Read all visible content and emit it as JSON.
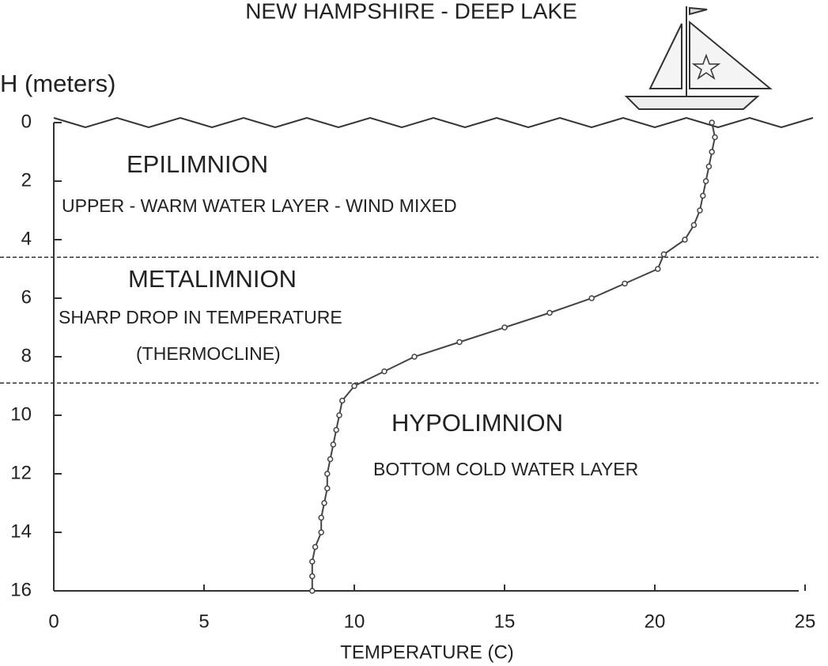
{
  "chart_data": {
    "type": "line",
    "title": "NEW HAMPSHIRE - DEEP LAKE",
    "y_label": "H (meters)",
    "x_label": "TEMPERATURE (C)",
    "x": [
      21.9,
      22.0,
      21.9,
      21.8,
      21.7,
      21.6,
      21.5,
      21.3,
      21.0,
      20.3,
      20.1,
      19.0,
      17.9,
      16.5,
      15.0,
      13.5,
      12.0,
      11.0,
      10.0,
      9.6,
      9.5,
      9.4,
      9.3,
      9.2,
      9.1,
      9.1,
      9.0,
      8.9,
      8.9,
      8.7,
      8.6,
      8.6,
      8.6
    ],
    "values": [
      0,
      0.5,
      1,
      1.5,
      2,
      2.5,
      3,
      3.5,
      4,
      4.5,
      5,
      5.5,
      6,
      6.5,
      7,
      7.5,
      8,
      8.5,
      9,
      9.5,
      10,
      10.5,
      11,
      11.5,
      12,
      12.5,
      13,
      13.5,
      14,
      14.5,
      15,
      15.5,
      16
    ],
    "color": "#444",
    "xlim": [
      0,
      25
    ],
    "xticks": [
      0,
      5,
      10,
      15,
      20,
      25
    ],
    "ylim": [
      0,
      16
    ],
    "yticks": [
      0,
      2,
      4,
      6,
      8,
      10,
      12,
      14,
      16
    ],
    "y_reversed": true,
    "layer_boundaries": [
      4.6,
      8.9
    ],
    "annotations": [
      "EPILIMNION",
      "UPPER - WARM WATER LAYER - WIND MIXED",
      "METALIMNION",
      "SHARP DROP IN TEMPERATURE",
      "(THERMOCLINE)",
      "HYPOLIMNION",
      "BOTTOM COLD WATER LAYER"
    ]
  }
}
